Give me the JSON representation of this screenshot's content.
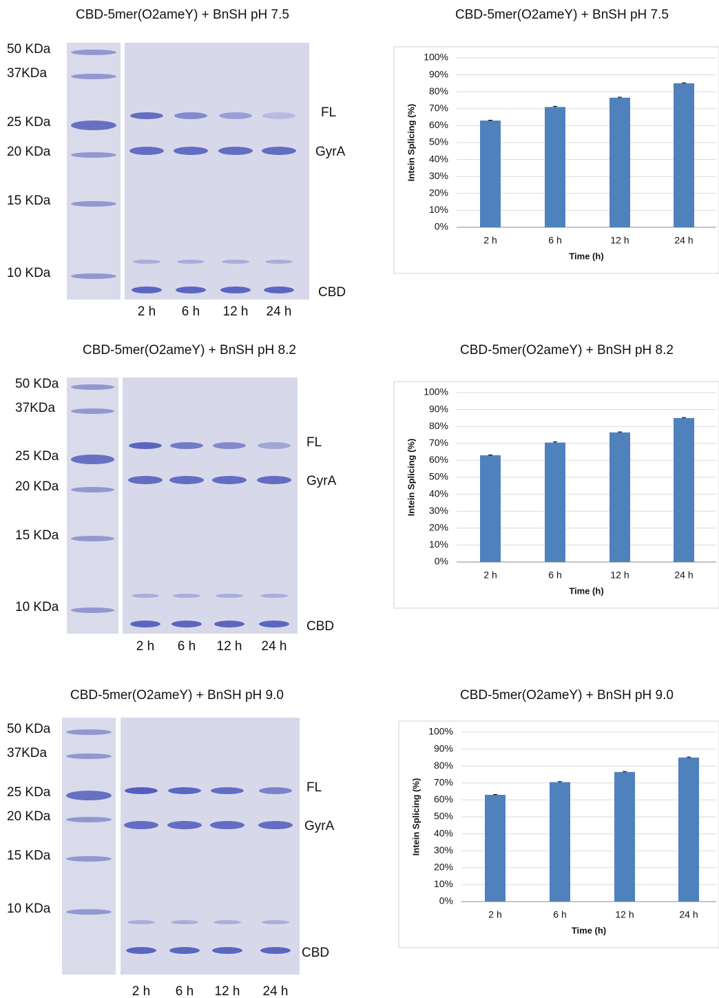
{
  "gels": [
    {
      "title": "CBD-5mer(O2ameY) + BnSH pH 7.5",
      "ladder": [
        "50 KDa",
        "37KDa",
        "25 KDa",
        "20 KDa",
        "15 KDa",
        "10 KDa"
      ],
      "lanes": [
        "2 h",
        "6 h",
        "12 h",
        "24 h"
      ],
      "bands": [
        "FL",
        "GyrA",
        "CBD"
      ]
    },
    {
      "title": "CBD-5mer(O2ameY) + BnSH pH 8.2",
      "ladder": [
        "50 KDa",
        "37KDa",
        "25 KDa",
        "20 KDa",
        "15 KDa",
        "10 KDa"
      ],
      "lanes": [
        "2 h",
        "6 h",
        "12 h",
        "24 h"
      ],
      "bands": [
        "FL",
        "GyrA",
        "CBD"
      ]
    },
    {
      "title": "CBD-5mer(O2ameY) + BnSH pH 9.0",
      "ladder": [
        "50 KDa",
        "37KDa",
        "25 KDa",
        "20 KDa",
        "15 KDa",
        "10 KDa"
      ],
      "lanes": [
        "2 h",
        "6 h",
        "12 h",
        "24 h"
      ],
      "bands": [
        "FL",
        "GyrA",
        "CBD"
      ]
    }
  ],
  "chart_data": [
    {
      "type": "bar",
      "title": "CBD-5mer(O2ameY) + BnSH pH 7.5",
      "x_label": "Time (h)",
      "y_label": "Intein Splicing (%)",
      "categories": [
        "2 h",
        "6 h",
        "12 h",
        "24 h"
      ],
      "values": [
        63,
        71,
        76.5,
        85
      ],
      "errors": [
        0.2,
        0.4,
        0.3,
        0.3
      ],
      "color": "#4f81bd",
      "ylim": [
        0,
        100
      ],
      "yticks": [
        {
          "value": 0,
          "label": "0%"
        },
        {
          "value": 10,
          "label": "10%"
        },
        {
          "value": 20,
          "label": "20%"
        },
        {
          "value": 30,
          "label": "30%"
        },
        {
          "value": 40,
          "label": "40%"
        },
        {
          "value": 50,
          "label": "50%"
        },
        {
          "value": 60,
          "label": "60%"
        },
        {
          "value": 70,
          "label": "70%"
        },
        {
          "value": 80,
          "label": "80%"
        },
        {
          "value": 90,
          "label": "90%"
        },
        {
          "value": 100,
          "label": "100%"
        }
      ],
      "grid": true
    },
    {
      "type": "bar",
      "title": "CBD-5mer(O2ameY) + BnSH pH 8.2",
      "x_label": "Time (h)",
      "y_label": "Intein Splicing (%)",
      "categories": [
        "2 h",
        "6 h",
        "12 h",
        "24 h"
      ],
      "values": [
        63,
        70.5,
        76.5,
        85
      ],
      "errors": [
        0.2,
        0.4,
        0.3,
        0.3
      ],
      "color": "#4f81bd",
      "ylim": [
        0,
        100
      ],
      "yticks": [
        {
          "value": 0,
          "label": "0%"
        },
        {
          "value": 10,
          "label": "10%"
        },
        {
          "value": 20,
          "label": "20%"
        },
        {
          "value": 30,
          "label": "30%"
        },
        {
          "value": 40,
          "label": "40%"
        },
        {
          "value": 50,
          "label": "50%"
        },
        {
          "value": 60,
          "label": "60%"
        },
        {
          "value": 70,
          "label": "70%"
        },
        {
          "value": 80,
          "label": "80%"
        },
        {
          "value": 90,
          "label": "90%"
        },
        {
          "value": 100,
          "label": "100%"
        }
      ],
      "grid": true
    },
    {
      "type": "bar",
      "title": "CBD-5mer(O2ameY) + BnSH pH 9.0",
      "x_label": "Time (h)",
      "y_label": "Intein Splicing (%)",
      "categories": [
        "2 h",
        "6 h",
        "12 h",
        "24 h"
      ],
      "values": [
        63,
        70.5,
        76.5,
        85
      ],
      "errors": [
        0.2,
        0.3,
        0.3,
        0.3
      ],
      "color": "#4f81bd",
      "ylim": [
        0,
        100
      ],
      "yticks": [
        {
          "value": 0,
          "label": "0%"
        },
        {
          "value": 10,
          "label": "10%"
        },
        {
          "value": 20,
          "label": "20%"
        },
        {
          "value": 30,
          "label": "30%"
        },
        {
          "value": 40,
          "label": "40%"
        },
        {
          "value": 50,
          "label": "50%"
        },
        {
          "value": 60,
          "label": "60%"
        },
        {
          "value": 70,
          "label": "70%"
        },
        {
          "value": 80,
          "label": "80%"
        },
        {
          "value": 90,
          "label": "90%"
        },
        {
          "value": 100,
          "label": "100%"
        }
      ],
      "grid": true
    }
  ]
}
